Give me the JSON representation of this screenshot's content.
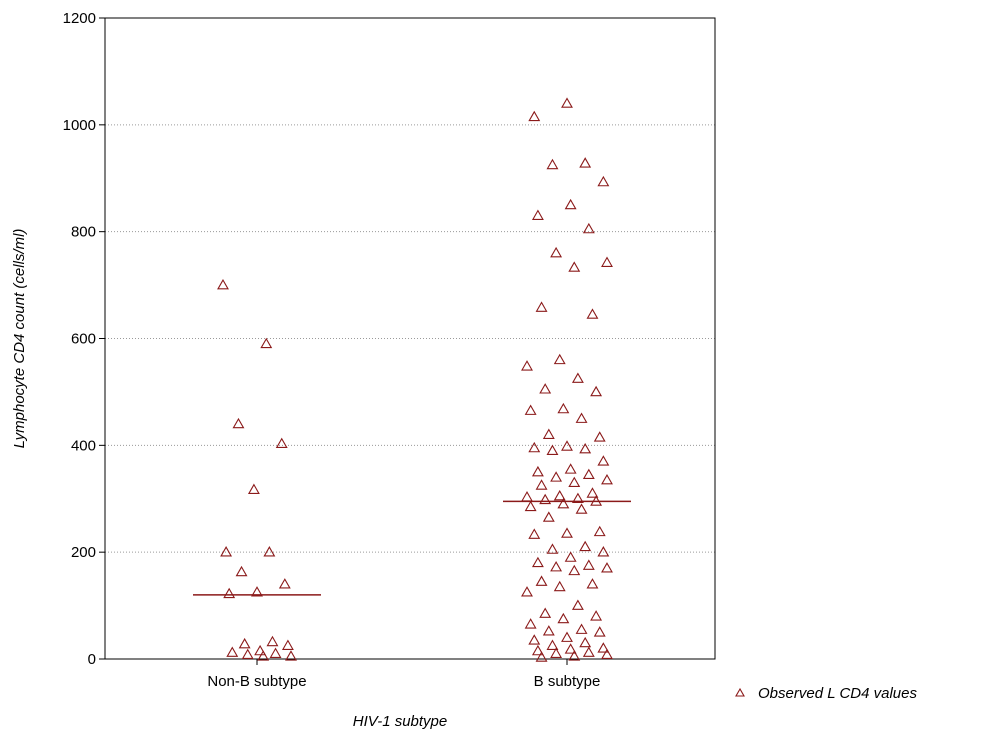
{
  "chart_data": {
    "type": "scatter",
    "title": "",
    "xlabel": "HIV-1 subtype",
    "ylabel": "Lymphocyte CD4 count (cells/ml)",
    "categories": [
      "Non-B subtype",
      "B subtype"
    ],
    "ylim": [
      0,
      1200
    ],
    "yticks": [
      0,
      200,
      400,
      600,
      800,
      1000,
      1200
    ],
    "grid": "horizontal dotted",
    "legend_position": "bottom-right",
    "marker_color": "#8b1a1a",
    "series": [
      {
        "name": "Observed L CD4 values",
        "groups": [
          {
            "category": "Non-B subtype",
            "values": [
              700,
              590,
              440,
              403,
              317,
              200,
              200,
              163,
              140,
              125,
              122,
              32,
              28,
              25,
              15,
              12,
              10,
              8,
              5,
              5
            ],
            "median": 120
          },
          {
            "category": "B subtype",
            "values": [
              1040,
              1015,
              928,
              925,
              893,
              850,
              830,
              805,
              760,
              742,
              733,
              658,
              645,
              560,
              548,
              525,
              505,
              500,
              468,
              465,
              450,
              420,
              415,
              398,
              395,
              393,
              390,
              370,
              355,
              350,
              345,
              340,
              335,
              330,
              325,
              310,
              305,
              303,
              300,
              298,
              295,
              290,
              285,
              280,
              265,
              238,
              235,
              233,
              210,
              205,
              200,
              190,
              180,
              175,
              172,
              170,
              165,
              145,
              140,
              135,
              125,
              100,
              85,
              80,
              75,
              65,
              55,
              52,
              50,
              40,
              35,
              30,
              25,
              20,
              18,
              15,
              12,
              10,
              8,
              5,
              3
            ],
            "median": 295
          }
        ]
      }
    ]
  }
}
